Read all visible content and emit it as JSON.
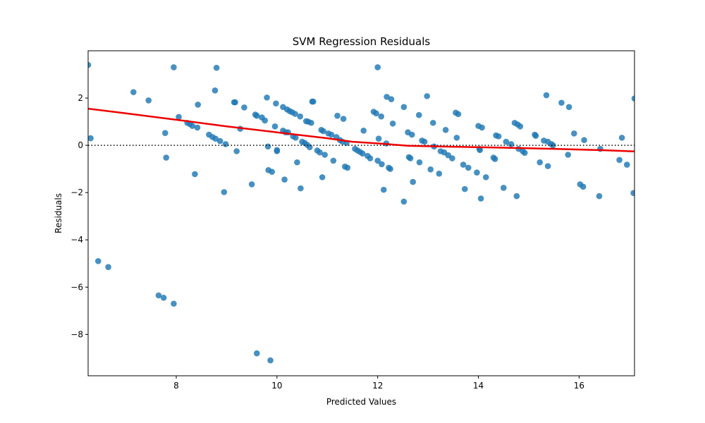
{
  "chart_data": {
    "type": "scatter",
    "title": "SVM Regression Residuals",
    "xlabel": "Predicted Values",
    "ylabel": "Residuals",
    "xlim": [
      6.25,
      17.1
    ],
    "ylim": [
      -9.75,
      4.0
    ],
    "xticks": [
      8,
      10,
      12,
      14,
      16
    ],
    "yticks": [
      -8,
      -6,
      -4,
      -2,
      0,
      2
    ],
    "colors": {
      "points": "#1f77b4",
      "trend": "#ee0000",
      "zero_line": "#000000"
    },
    "zero_line": {
      "y": 0,
      "style": "dotted"
    },
    "trend_line": {
      "x": [
        6.25,
        7.0,
        8.0,
        9.0,
        10.0,
        11.0,
        11.5,
        12.0,
        12.6,
        13.5,
        14.5,
        15.5,
        16.5,
        17.1
      ],
      "y": [
        1.55,
        1.35,
        1.08,
        0.8,
        0.55,
        0.3,
        0.15,
        0.08,
        -0.02,
        -0.06,
        -0.1,
        -0.15,
        -0.21,
        -0.26
      ]
    },
    "points": [
      [
        6.25,
        3.4
      ],
      [
        6.3,
        0.3
      ],
      [
        6.45,
        -4.9
      ],
      [
        6.65,
        -5.15
      ],
      [
        7.15,
        2.25
      ],
      [
        7.45,
        1.9
      ],
      [
        7.65,
        -6.35
      ],
      [
        7.75,
        -6.45
      ],
      [
        7.78,
        0.52
      ],
      [
        7.8,
        -0.52
      ],
      [
        7.95,
        3.3
      ],
      [
        7.95,
        -6.7
      ],
      [
        8.05,
        1.2
      ],
      [
        8.22,
        0.95
      ],
      [
        8.27,
        0.9
      ],
      [
        8.32,
        0.82
      ],
      [
        8.37,
        -1.22
      ],
      [
        8.42,
        0.75
      ],
      [
        8.43,
        1.72
      ],
      [
        8.65,
        0.45
      ],
      [
        8.72,
        0.35
      ],
      [
        8.78,
        0.28
      ],
      [
        8.8,
        3.28
      ],
      [
        8.77,
        2.32
      ],
      [
        8.87,
        0.18
      ],
      [
        8.95,
        -1.98
      ],
      [
        8.98,
        0.05
      ],
      [
        9.15,
        1.82
      ],
      [
        9.17,
        1.82
      ],
      [
        9.2,
        -0.25
      ],
      [
        9.27,
        0.7
      ],
      [
        9.35,
        1.6
      ],
      [
        9.5,
        -1.65
      ],
      [
        9.57,
        1.3
      ],
      [
        9.6,
        1.25
      ],
      [
        9.6,
        -8.8
      ],
      [
        9.7,
        1.18
      ],
      [
        9.76,
        1.05
      ],
      [
        9.8,
        2.02
      ],
      [
        9.82,
        -0.05
      ],
      [
        9.83,
        -1.05
      ],
      [
        9.87,
        -9.1
      ],
      [
        9.9,
        -1.12
      ],
      [
        9.96,
        0.8
      ],
      [
        9.98,
        1.77
      ],
      [
        10.0,
        -0.2
      ],
      [
        10.0,
        -0.25
      ],
      [
        10.12,
        1.62
      ],
      [
        10.12,
        0.62
      ],
      [
        10.15,
        -1.45
      ],
      [
        10.17,
        0.55
      ],
      [
        10.2,
        1.52
      ],
      [
        10.22,
        0.55
      ],
      [
        10.25,
        1.45
      ],
      [
        10.3,
        1.4
      ],
      [
        10.32,
        0.38
      ],
      [
        10.36,
        1.33
      ],
      [
        10.37,
        0.32
      ],
      [
        10.4,
        -0.72
      ],
      [
        10.46,
        1.22
      ],
      [
        10.47,
        -1.82
      ],
      [
        10.5,
        0.15
      ],
      [
        10.55,
        0.1
      ],
      [
        10.58,
        1.02
      ],
      [
        10.6,
        0.02
      ],
      [
        10.62,
        1.0
      ],
      [
        10.65,
        -0.08
      ],
      [
        10.68,
        0.95
      ],
      [
        10.7,
        1.85
      ],
      [
        10.72,
        1.85
      ],
      [
        10.8,
        -0.22
      ],
      [
        10.85,
        -0.3
      ],
      [
        10.88,
        0.65
      ],
      [
        10.9,
        -1.35
      ],
      [
        10.92,
        0.6
      ],
      [
        10.95,
        -0.4
      ],
      [
        11.02,
        0.5
      ],
      [
        11.08,
        0.45
      ],
      [
        11.12,
        -0.65
      ],
      [
        11.18,
        0.35
      ],
      [
        11.2,
        1.25
      ],
      [
        11.25,
        0.22
      ],
      [
        11.3,
        0.15
      ],
      [
        11.32,
        1.12
      ],
      [
        11.35,
        -0.9
      ],
      [
        11.38,
        0.1
      ],
      [
        11.4,
        -0.95
      ],
      [
        11.55,
        -0.15
      ],
      [
        11.6,
        -0.22
      ],
      [
        11.65,
        -0.28
      ],
      [
        11.7,
        -0.35
      ],
      [
        11.72,
        0.62
      ],
      [
        11.8,
        -0.45
      ],
      [
        11.85,
        -0.55
      ],
      [
        11.92,
        1.42
      ],
      [
        11.97,
        1.35
      ],
      [
        12.0,
        3.3
      ],
      [
        12.0,
        -0.65
      ],
      [
        12.02,
        0.28
      ],
      [
        12.07,
        1.22
      ],
      [
        12.08,
        -0.8
      ],
      [
        12.12,
        -1.88
      ],
      [
        12.17,
        0.08
      ],
      [
        12.18,
        2.05
      ],
      [
        12.22,
        -0.95
      ],
      [
        12.25,
        -1.0
      ],
      [
        12.27,
        1.95
      ],
      [
        12.3,
        0.92
      ],
      [
        12.52,
        1.62
      ],
      [
        12.52,
        -2.38
      ],
      [
        12.6,
        0.55
      ],
      [
        12.62,
        -0.5
      ],
      [
        12.65,
        -0.55
      ],
      [
        12.68,
        0.45
      ],
      [
        12.7,
        -1.55
      ],
      [
        12.82,
        1.28
      ],
      [
        12.83,
        -0.72
      ],
      [
        12.88,
        0.2
      ],
      [
        12.93,
        0.15
      ],
      [
        12.98,
        2.08
      ],
      [
        13.05,
        -1.02
      ],
      [
        13.1,
        0.95
      ],
      [
        13.12,
        -0.05
      ],
      [
        13.22,
        -1.2
      ],
      [
        13.25,
        -0.25
      ],
      [
        13.32,
        -0.3
      ],
      [
        13.35,
        0.65
      ],
      [
        13.4,
        -0.42
      ],
      [
        13.48,
        -0.55
      ],
      [
        13.55,
        1.38
      ],
      [
        13.57,
        0.32
      ],
      [
        13.6,
        1.32
      ],
      [
        13.7,
        -0.82
      ],
      [
        13.73,
        -1.85
      ],
      [
        13.8,
        -0.95
      ],
      [
        13.97,
        -1.15
      ],
      [
        14.0,
        0.82
      ],
      [
        14.02,
        -0.15
      ],
      [
        14.03,
        -0.2
      ],
      [
        14.05,
        -2.25
      ],
      [
        14.07,
        0.75
      ],
      [
        14.15,
        -1.35
      ],
      [
        14.3,
        -0.52
      ],
      [
        14.33,
        -0.58
      ],
      [
        14.35,
        0.42
      ],
      [
        14.4,
        0.38
      ],
      [
        14.5,
        -1.8
      ],
      [
        14.55,
        0.15
      ],
      [
        14.65,
        0.05
      ],
      [
        14.72,
        0.95
      ],
      [
        14.76,
        -2.15
      ],
      [
        14.78,
        0.88
      ],
      [
        14.8,
        -0.15
      ],
      [
        14.83,
        0.8
      ],
      [
        14.88,
        -0.25
      ],
      [
        14.92,
        -0.32
      ],
      [
        15.12,
        0.45
      ],
      [
        15.14,
        0.4
      ],
      [
        15.22,
        -0.72
      ],
      [
        15.3,
        0.2
      ],
      [
        15.35,
        2.12
      ],
      [
        15.38,
        0.15
      ],
      [
        15.38,
        -0.88
      ],
      [
        15.45,
        0.05
      ],
      [
        15.48,
        0.0
      ],
      [
        15.65,
        1.8
      ],
      [
        15.78,
        -0.4
      ],
      [
        15.8,
        1.62
      ],
      [
        15.9,
        0.5
      ],
      [
        16.02,
        -1.65
      ],
      [
        16.08,
        -1.75
      ],
      [
        16.1,
        0.22
      ],
      [
        16.4,
        -2.15
      ],
      [
        16.42,
        -0.15
      ],
      [
        16.8,
        -0.62
      ],
      [
        16.85,
        0.32
      ],
      [
        16.95,
        -0.82
      ],
      [
        17.08,
        -2.02
      ],
      [
        17.1,
        1.98
      ]
    ]
  }
}
